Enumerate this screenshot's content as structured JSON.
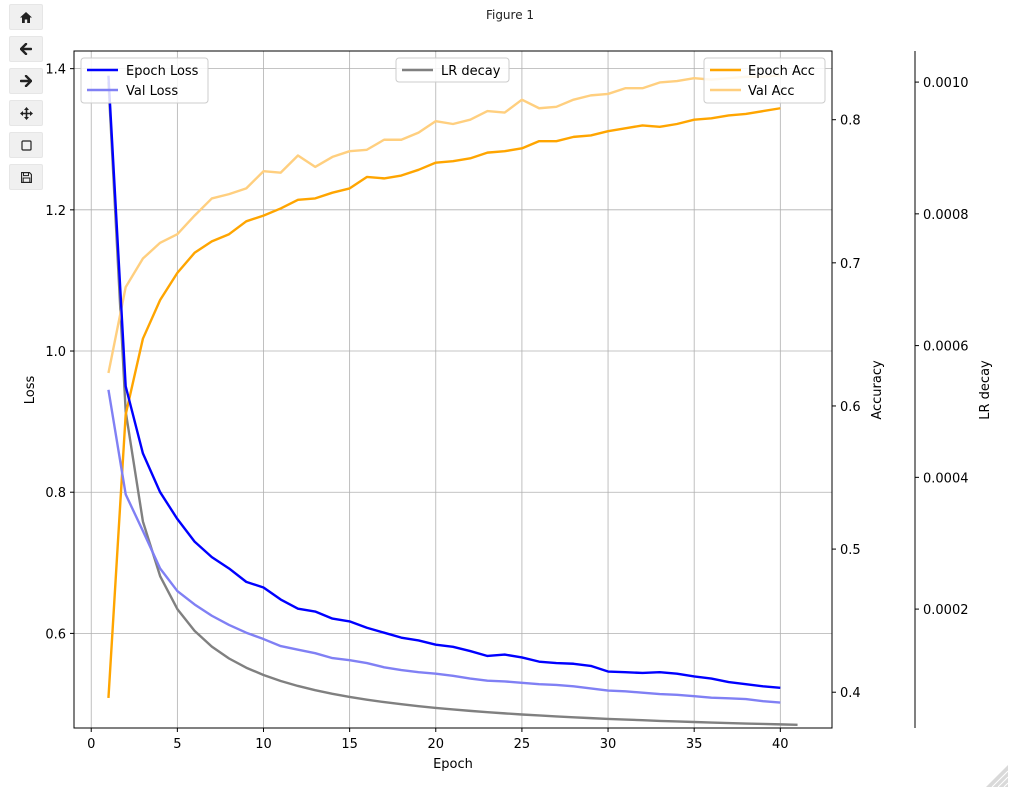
{
  "window": {
    "title": "Figure 1"
  },
  "toolbar": {
    "buttons": [
      {
        "name": "home-button",
        "icon": "home-icon"
      },
      {
        "name": "back-button",
        "icon": "arrow-left-icon"
      },
      {
        "name": "forward-button",
        "icon": "arrow-right-icon"
      },
      {
        "name": "pan-button",
        "icon": "move-icon"
      },
      {
        "name": "zoom-button",
        "icon": "square-icon"
      },
      {
        "name": "save-button",
        "icon": "floppy-icon"
      }
    ]
  },
  "chart_data": {
    "type": "line",
    "xlabel": "Epoch",
    "xlim": [
      -1,
      43
    ],
    "xticks": [
      0,
      5,
      10,
      15,
      20,
      25,
      30,
      35,
      40
    ],
    "grid": true,
    "axes": {
      "loss": {
        "label": "Loss",
        "ylim": [
          0.466,
          1.425
        ],
        "ticks": [
          {
            "value": 0.6,
            "label": "0.6"
          },
          {
            "value": 0.8,
            "label": "0.8"
          },
          {
            "value": 1.0,
            "label": "1.0"
          },
          {
            "value": 1.2,
            "label": "1.2"
          },
          {
            "value": 1.4,
            "label": "1.4"
          }
        ],
        "legend_placement": "top-left"
      },
      "accuracy": {
        "label": "Accuracy",
        "ylim": [
          0.375,
          0.848
        ],
        "ticks": [
          {
            "value": 0.4,
            "label": "0.4"
          },
          {
            "value": 0.5,
            "label": "0.5"
          },
          {
            "value": 0.6,
            "label": "0.6"
          },
          {
            "value": 0.7,
            "label": "0.7"
          },
          {
            "value": 0.8,
            "label": "0.8"
          }
        ],
        "legend_placement": "top-right"
      },
      "lr": {
        "label": "LR decay",
        "ylim": [
          1.95e-05,
          0.0010472
        ],
        "ticks": [
          {
            "value": 0.0002,
            "label": "0.0002"
          },
          {
            "value": 0.0004,
            "label": "0.0004"
          },
          {
            "value": 0.0006,
            "label": "0.0006"
          },
          {
            "value": 0.0008,
            "label": "0.0008"
          },
          {
            "value": 0.001,
            "label": "0.0010"
          }
        ],
        "legend_placement": "top-center"
      }
    },
    "series": [
      {
        "name": "Epoch Loss",
        "axis": "loss",
        "color": "#0000ff",
        "x_start": 1,
        "values": [
          1.39,
          0.95,
          0.855,
          0.8,
          0.762,
          0.73,
          0.708,
          0.692,
          0.673,
          0.665,
          0.648,
          0.635,
          0.631,
          0.621,
          0.617,
          0.608,
          0.601,
          0.594,
          0.59,
          0.584,
          0.581,
          0.575,
          0.568,
          0.57,
          0.566,
          0.56,
          0.558,
          0.557,
          0.554,
          0.546,
          0.545,
          0.544,
          0.545,
          0.543,
          0.539,
          0.536,
          0.531,
          0.528,
          0.525,
          0.523
        ]
      },
      {
        "name": "Val Loss",
        "axis": "loss",
        "color": "#8080f4",
        "x_start": 1,
        "values": [
          0.945,
          0.797,
          0.745,
          0.692,
          0.66,
          0.641,
          0.625,
          0.612,
          0.601,
          0.592,
          0.582,
          0.577,
          0.572,
          0.565,
          0.562,
          0.558,
          0.552,
          0.548,
          0.545,
          0.543,
          0.54,
          0.536,
          0.533,
          0.532,
          0.53,
          0.528,
          0.527,
          0.525,
          0.522,
          0.519,
          0.518,
          0.516,
          0.514,
          0.513,
          0.511,
          0.509,
          0.508,
          0.507,
          0.504,
          0.502
        ]
      },
      {
        "name": "Epoch Acc",
        "axis": "accuracy",
        "color": "#ffa500",
        "x_start": 1,
        "values": [
          0.396,
          0.594,
          0.647,
          0.674,
          0.693,
          0.707,
          0.715,
          0.72,
          0.729,
          0.733,
          0.738,
          0.744,
          0.745,
          0.749,
          0.752,
          0.76,
          0.759,
          0.761,
          0.765,
          0.77,
          0.771,
          0.773,
          0.777,
          0.778,
          0.78,
          0.785,
          0.785,
          0.788,
          0.789,
          0.792,
          0.794,
          0.796,
          0.795,
          0.797,
          0.8,
          0.801,
          0.803,
          0.804,
          0.806,
          0.808
        ]
      },
      {
        "name": "Val Acc",
        "axis": "accuracy",
        "color": "#ffcf7f",
        "x_start": 1,
        "values": [
          0.623,
          0.683,
          0.703,
          0.714,
          0.72,
          0.733,
          0.745,
          0.748,
          0.752,
          0.764,
          0.763,
          0.775,
          0.767,
          0.774,
          0.778,
          0.779,
          0.786,
          0.786,
          0.791,
          0.799,
          0.797,
          0.8,
          0.806,
          0.805,
          0.814,
          0.808,
          0.809,
          0.814,
          0.817,
          0.818,
          0.822,
          0.822,
          0.826,
          0.827,
          0.829,
          0.828,
          0.829,
          0.83,
          0.83,
          0.831
        ]
      },
      {
        "name": "LR decay",
        "axis": "lr",
        "color": "#808080",
        "x_start": 1,
        "values": [
          0.001,
          0.0005,
          0.000333,
          0.00025,
          0.0002,
          0.000167,
          0.000143,
          0.000125,
          0.000111,
          0.0001,
          9.09e-05,
          8.33e-05,
          7.69e-05,
          7.14e-05,
          6.67e-05,
          6.25e-05,
          5.88e-05,
          5.56e-05,
          5.26e-05,
          5e-05,
          4.76e-05,
          4.55e-05,
          4.35e-05,
          4.17e-05,
          4e-05,
          3.85e-05,
          3.7e-05,
          3.57e-05,
          3.45e-05,
          3.33e-05,
          3.23e-05,
          3.13e-05,
          3.03e-05,
          2.94e-05,
          2.86e-05,
          2.78e-05,
          2.7e-05,
          2.63e-05,
          2.56e-05,
          2.5e-05,
          2.44e-05
        ]
      }
    ]
  }
}
